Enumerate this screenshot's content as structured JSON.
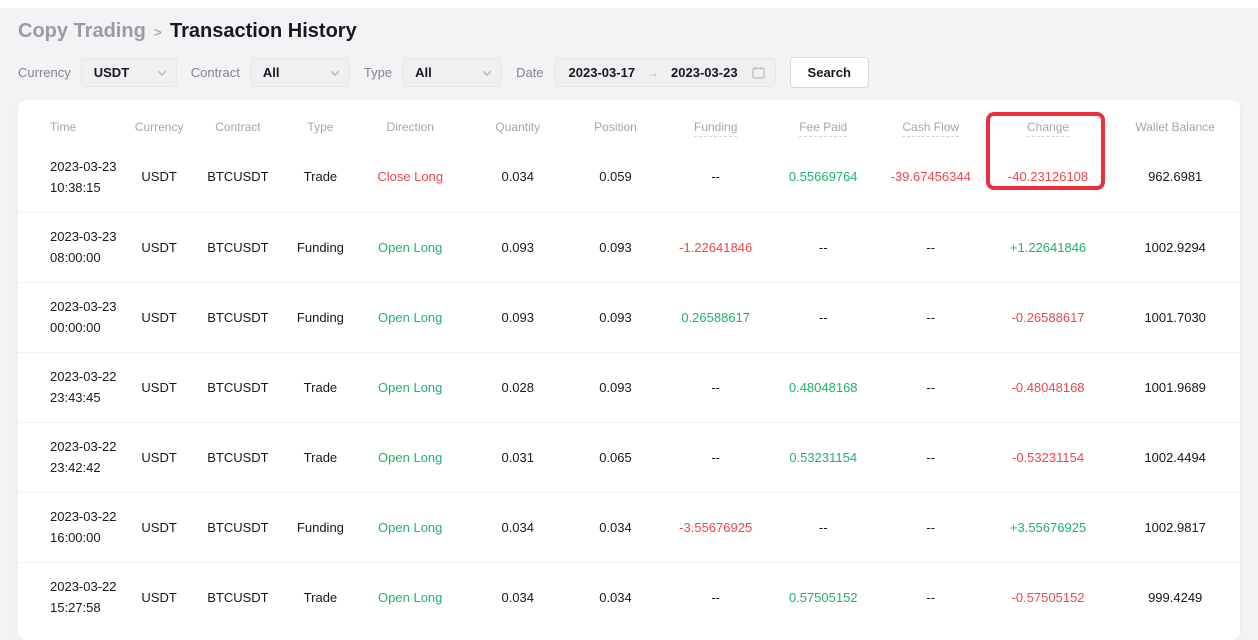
{
  "breadcrumb": {
    "parent": "Copy Trading",
    "separator": ">",
    "current": "Transaction History"
  },
  "filters": {
    "currency": {
      "label": "Currency",
      "value": "USDT"
    },
    "contract": {
      "label": "Contract",
      "value": "All"
    },
    "type": {
      "label": "Type",
      "value": "All"
    },
    "date": {
      "label": "Date",
      "start": "2023-03-17",
      "arrow": "→",
      "end": "2023-03-23"
    },
    "search_label": "Search"
  },
  "table": {
    "columns": [
      {
        "key": "time",
        "label": "Time",
        "underline": false
      },
      {
        "key": "currency",
        "label": "Currency",
        "underline": false
      },
      {
        "key": "contract",
        "label": "Contract",
        "underline": false
      },
      {
        "key": "type",
        "label": "Type",
        "underline": false
      },
      {
        "key": "direction",
        "label": "Direction",
        "underline": false
      },
      {
        "key": "quantity",
        "label": "Quantity",
        "underline": false
      },
      {
        "key": "position",
        "label": "Position",
        "underline": false
      },
      {
        "key": "funding",
        "label": "Funding",
        "underline": true
      },
      {
        "key": "fee_paid",
        "label": "Fee Paid",
        "underline": true
      },
      {
        "key": "cash_flow",
        "label": "Cash Flow",
        "underline": true
      },
      {
        "key": "change",
        "label": "Change",
        "underline": true
      },
      {
        "key": "wallet_balance",
        "label": "Wallet Balance",
        "underline": false
      }
    ],
    "rows": [
      {
        "date": "2023-03-23",
        "time": "10:38:15",
        "currency": "USDT",
        "contract": "BTCUSDT",
        "type": "Trade",
        "direction": {
          "text": "Close Long",
          "color": "red"
        },
        "quantity": "0.034",
        "position": "0.059",
        "funding": {
          "text": "--",
          "color": "default"
        },
        "fee_paid": {
          "text": "0.55669764",
          "color": "green"
        },
        "cash_flow": {
          "text": "-39.67456344",
          "color": "red"
        },
        "change": {
          "text": "-40.23126108",
          "color": "red"
        },
        "wallet_balance": "962.6981"
      },
      {
        "date": "2023-03-23",
        "time": "08:00:00",
        "currency": "USDT",
        "contract": "BTCUSDT",
        "type": "Funding",
        "direction": {
          "text": "Open Long",
          "color": "green"
        },
        "quantity": "0.093",
        "position": "0.093",
        "funding": {
          "text": "-1.22641846",
          "color": "red"
        },
        "fee_paid": {
          "text": "--",
          "color": "default"
        },
        "cash_flow": {
          "text": "--",
          "color": "default"
        },
        "change": {
          "text": "+1.22641846",
          "color": "green"
        },
        "wallet_balance": "1002.9294"
      },
      {
        "date": "2023-03-23",
        "time": "00:00:00",
        "currency": "USDT",
        "contract": "BTCUSDT",
        "type": "Funding",
        "direction": {
          "text": "Open Long",
          "color": "green"
        },
        "quantity": "0.093",
        "position": "0.093",
        "funding": {
          "text": "0.26588617",
          "color": "green"
        },
        "fee_paid": {
          "text": "--",
          "color": "default"
        },
        "cash_flow": {
          "text": "--",
          "color": "default"
        },
        "change": {
          "text": "-0.26588617",
          "color": "red"
        },
        "wallet_balance": "1001.7030"
      },
      {
        "date": "2023-03-22",
        "time": "23:43:45",
        "currency": "USDT",
        "contract": "BTCUSDT",
        "type": "Trade",
        "direction": {
          "text": "Open Long",
          "color": "green"
        },
        "quantity": "0.028",
        "position": "0.093",
        "funding": {
          "text": "--",
          "color": "default"
        },
        "fee_paid": {
          "text": "0.48048168",
          "color": "green"
        },
        "cash_flow": {
          "text": "--",
          "color": "default"
        },
        "change": {
          "text": "-0.48048168",
          "color": "red"
        },
        "wallet_balance": "1001.9689"
      },
      {
        "date": "2023-03-22",
        "time": "23:42:42",
        "currency": "USDT",
        "contract": "BTCUSDT",
        "type": "Trade",
        "direction": {
          "text": "Open Long",
          "color": "green"
        },
        "quantity": "0.031",
        "position": "0.065",
        "funding": {
          "text": "--",
          "color": "default"
        },
        "fee_paid": {
          "text": "0.53231154",
          "color": "green"
        },
        "cash_flow": {
          "text": "--",
          "color": "default"
        },
        "change": {
          "text": "-0.53231154",
          "color": "red"
        },
        "wallet_balance": "1002.4494"
      },
      {
        "date": "2023-03-22",
        "time": "16:00:00",
        "currency": "USDT",
        "contract": "BTCUSDT",
        "type": "Funding",
        "direction": {
          "text": "Open Long",
          "color": "green"
        },
        "quantity": "0.034",
        "position": "0.034",
        "funding": {
          "text": "-3.55676925",
          "color": "red"
        },
        "fee_paid": {
          "text": "--",
          "color": "default"
        },
        "cash_flow": {
          "text": "--",
          "color": "default"
        },
        "change": {
          "text": "+3.55676925",
          "color": "green"
        },
        "wallet_balance": "1002.9817"
      },
      {
        "date": "2023-03-22",
        "time": "15:27:58",
        "currency": "USDT",
        "contract": "BTCUSDT",
        "type": "Trade",
        "direction": {
          "text": "Open Long",
          "color": "green"
        },
        "quantity": "0.034",
        "position": "0.034",
        "funding": {
          "text": "--",
          "color": "default"
        },
        "fee_paid": {
          "text": "0.57505152",
          "color": "green"
        },
        "cash_flow": {
          "text": "--",
          "color": "default"
        },
        "change": {
          "text": "-0.57505152",
          "color": "red"
        },
        "wallet_balance": "999.4249"
      }
    ]
  },
  "annotation": {
    "type": "highlight-box",
    "target": "change-column-and-first-row-value"
  },
  "colors": {
    "positive": "#20b26c",
    "negative": "#ef454a",
    "highlight": "#e8313d"
  }
}
